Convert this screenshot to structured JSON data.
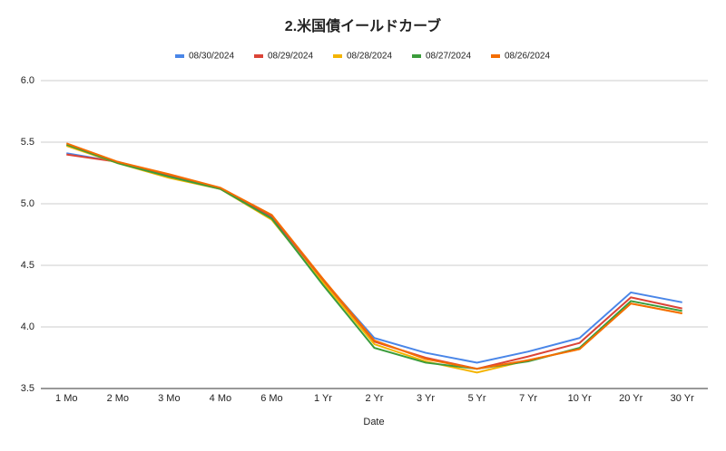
{
  "chart_data": {
    "type": "line",
    "title": "2.米国債イールドカーブ",
    "x_label": "Date",
    "categories": [
      "1 Mo",
      "2 Mo",
      "3 Mo",
      "4 Mo",
      "6 Mo",
      "1 Yr",
      "2 Yr",
      "3 Yr",
      "5 Yr",
      "7 Yr",
      "10 Yr",
      "20 Yr",
      "30 Yr"
    ],
    "series": [
      {
        "name": "08/30/2024",
        "color": "#4a86e8",
        "values": [
          5.41,
          5.34,
          5.23,
          5.12,
          4.89,
          4.38,
          3.91,
          3.79,
          3.71,
          3.8,
          3.91,
          4.28,
          4.2
        ]
      },
      {
        "name": "08/29/2024",
        "color": "#db4437",
        "values": [
          5.4,
          5.34,
          5.23,
          5.12,
          4.9,
          4.38,
          3.88,
          3.75,
          3.66,
          3.76,
          3.87,
          4.24,
          4.15
        ]
      },
      {
        "name": "08/28/2024",
        "color": "#f4b400",
        "values": [
          5.47,
          5.33,
          5.21,
          5.12,
          4.87,
          4.36,
          3.86,
          3.72,
          3.63,
          3.73,
          3.82,
          4.19,
          4.11
        ]
      },
      {
        "name": "08/27/2024",
        "color": "#3b9c3b",
        "values": [
          5.48,
          5.33,
          5.22,
          5.12,
          4.88,
          4.34,
          3.83,
          3.71,
          3.66,
          3.72,
          3.83,
          4.21,
          4.13
        ]
      },
      {
        "name": "08/26/2024",
        "color": "#f46d00",
        "values": [
          5.49,
          5.34,
          5.24,
          5.13,
          4.91,
          4.39,
          3.89,
          3.74,
          3.66,
          3.73,
          3.82,
          4.19,
          4.11
        ]
      }
    ],
    "ylim": [
      3.5,
      6.0
    ],
    "yticks": [
      3.5,
      {
        "value": 4.0,
        "label": "4.0"
      },
      4.5,
      {
        "value": 5.0,
        "label": "5.0"
      },
      5.5,
      {
        "value": 6.0,
        "label": "6.0"
      }
    ],
    "grid": true
  }
}
